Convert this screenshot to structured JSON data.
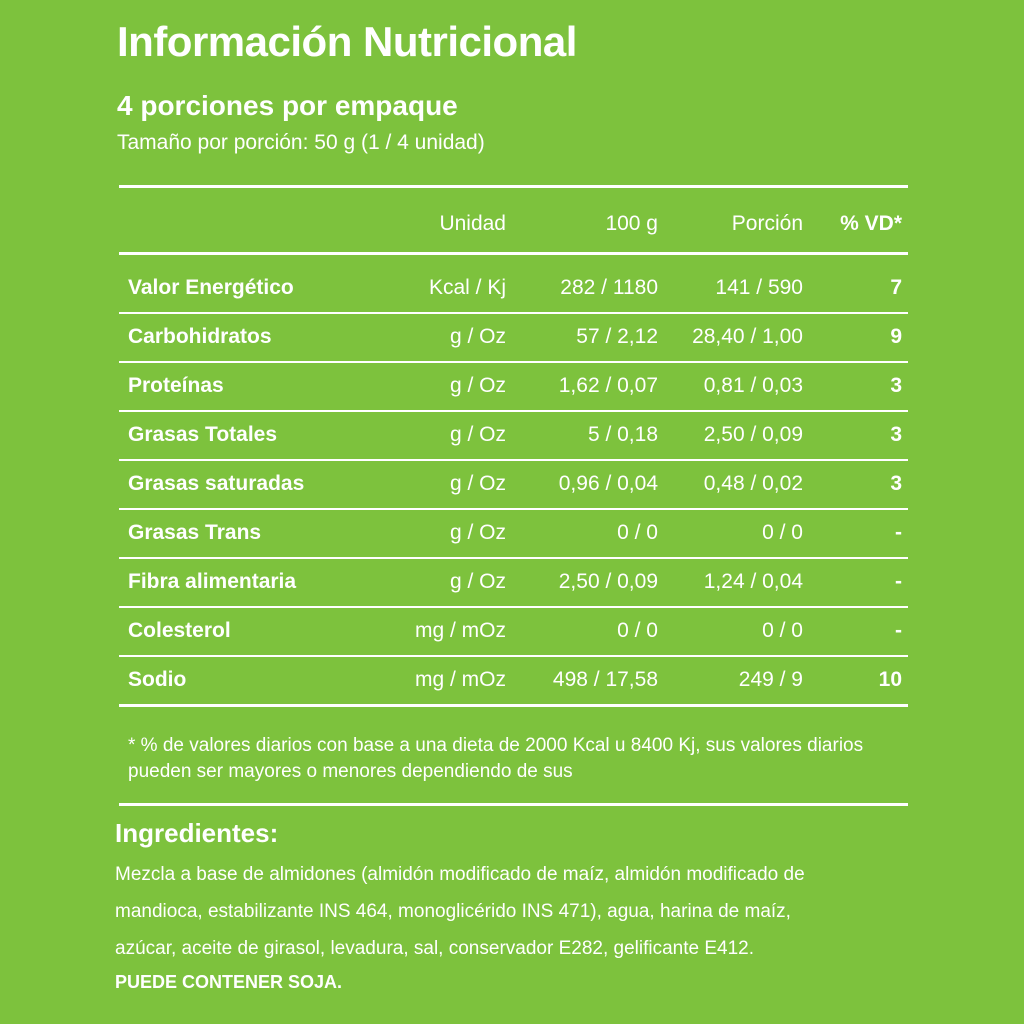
{
  "title": "Información Nutricional",
  "servings_per_package": "4 porciones por empaque",
  "serving_size": "Tamaño por porción: 50 g (1 / 4 unidad)",
  "table": {
    "headers": {
      "unit": "Unidad",
      "per100": "100 g",
      "portion": "Porción",
      "vd": "% VD*"
    },
    "rows": [
      {
        "name": "Valor Energético",
        "unit": "Kcal / Kj",
        "per100": "282 / 1180",
        "portion": "141 / 590",
        "vd": "7"
      },
      {
        "name": "Carbohidratos",
        "unit": "g / Oz",
        "per100": "57 / 2,12",
        "portion": "28,40 / 1,00",
        "vd": "9"
      },
      {
        "name": "Proteínas",
        "unit": "g / Oz",
        "per100": "1,62 / 0,07",
        "portion": "0,81 / 0,03",
        "vd": "3"
      },
      {
        "name": "Grasas Totales",
        "unit": "g / Oz",
        "per100": "5 / 0,18",
        "portion": "2,50 / 0,09",
        "vd": "3"
      },
      {
        "name": "Grasas saturadas",
        "unit": "g / Oz",
        "per100": "0,96 / 0,04",
        "portion": "0,48 / 0,02",
        "vd": "3"
      },
      {
        "name": "Grasas Trans",
        "unit": "g / Oz",
        "per100": "0 / 0",
        "portion": "0 / 0",
        "vd": "-"
      },
      {
        "name": "Fibra alimentaria",
        "unit": "g / Oz",
        "per100": "2,50 / 0,09",
        "portion": "1,24 / 0,04",
        "vd": "-"
      },
      {
        "name": "Colesterol",
        "unit": "mg / mOz",
        "per100": "0 / 0",
        "portion": "0 / 0",
        "vd": "-"
      },
      {
        "name": "Sodio",
        "unit": "mg / mOz",
        "per100": "498 / 17,58",
        "portion": "249 / 9",
        "vd": "10"
      }
    ]
  },
  "footnote": "* % de valores diarios con base a una dieta de 2000 Kcal u 8400 Kj, sus valores diarios pueden ser mayores o menores dependiendo de sus",
  "ingredients": {
    "title": "Ingredientes:",
    "lines": [
      "Mezcla a base de almidones (almidón modificado de maíz, almidón modificado de",
      "mandioca, estabilizante INS 464, monoglicérido INS 471), agua, harina de maíz,",
      "azúcar, aceite de girasol, levadura, sal, conservador E282, gelificante E412."
    ],
    "allergen": "PUEDE CONTENER SOJA."
  },
  "colors": {
    "background": "#7dc23d",
    "text": "#ffffff"
  }
}
